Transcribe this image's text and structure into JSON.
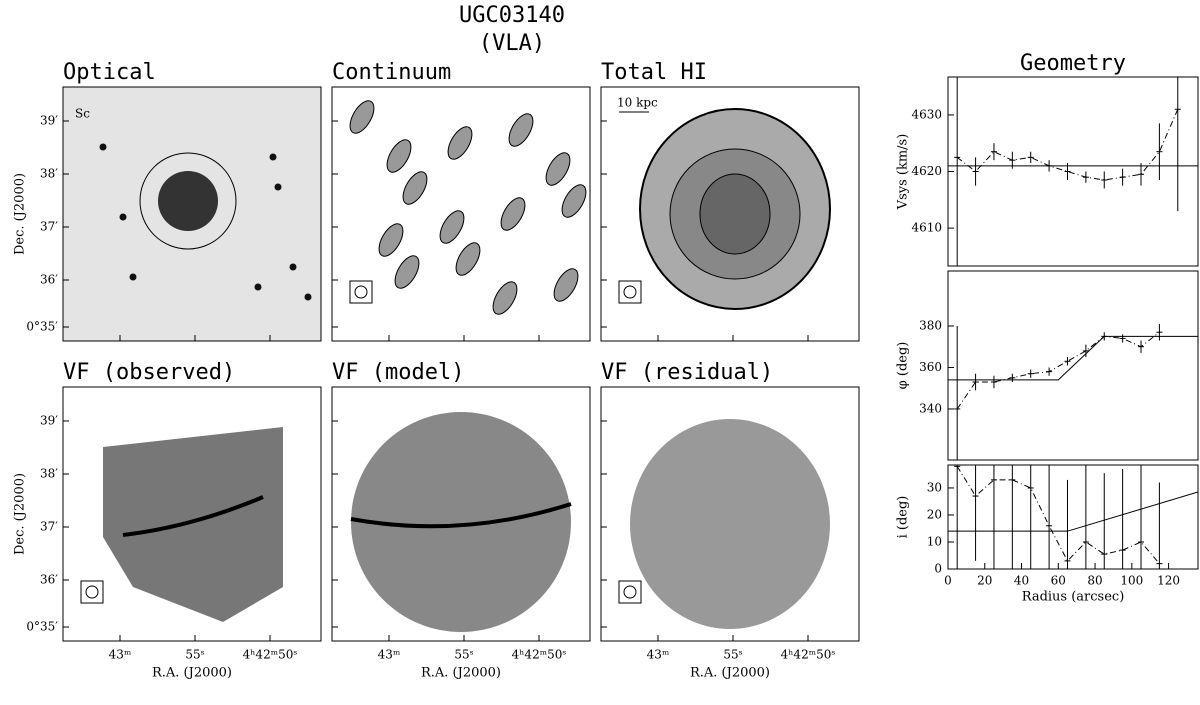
{
  "title": "UGC03140",
  "subtitle": "(VLA)",
  "panels": [
    {
      "title": "Optical",
      "annotation": "Sc"
    },
    {
      "title": "Continuum"
    },
    {
      "title": "Total HI",
      "annotation": "10 kpc"
    },
    {
      "title": "VF (observed)"
    },
    {
      "title": "VF (model)"
    },
    {
      "title": "VF (residual)"
    }
  ],
  "image_axes": {
    "ylabel": "Dec. (J2000)",
    "xlabel": "R.A. (J2000)",
    "yticks": [
      "39′",
      "38′",
      "37′",
      "36′",
      "0°35′"
    ],
    "xticks": [
      "43ᵐ",
      "55ˢ",
      "4ʰ42ᵐ50ˢ"
    ]
  },
  "geometry_title": "Geometry",
  "chart_data": [
    {
      "type": "errorbar",
      "ylabel": "Vsys (km/s)",
      "xlim": [
        0,
        136
      ],
      "ylim": [
        4603.3,
        4636.7
      ],
      "yticks": [
        4610,
        4620,
        4630
      ],
      "x": [
        5,
        15,
        25,
        35,
        45,
        55,
        65,
        75,
        85,
        95,
        105,
        115,
        125
      ],
      "values": [
        4622.5,
        4620,
        4623.5,
        4622,
        4622.5,
        4621,
        4620,
        4619,
        4618.5,
        4619,
        4619.5,
        4623.5,
        4631
      ],
      "errors": [
        40,
        2.5,
        1.5,
        1.5,
        1,
        1,
        1.5,
        1,
        1.5,
        1.5,
        2,
        5,
        18
      ],
      "fit": {
        "x": [
          0,
          136
        ],
        "values": [
          4621,
          4621
        ]
      }
    },
    {
      "type": "errorbar",
      "ylabel": "φ (deg)",
      "xlim": [
        0,
        136
      ],
      "ylim": [
        315.4,
        406.5
      ],
      "yticks": [
        340,
        360,
        380
      ],
      "x": [
        5,
        15,
        25,
        35,
        45,
        55,
        65,
        75,
        85,
        95,
        105,
        115
      ],
      "values": [
        340,
        353,
        353,
        355,
        357,
        358,
        363,
        368,
        375,
        374,
        370,
        377
      ],
      "errors": [
        40,
        4,
        3,
        2,
        2,
        2,
        2,
        3,
        2,
        2,
        3,
        4
      ],
      "fit": {
        "x": [
          0,
          60,
          85,
          136
        ],
        "values": [
          354,
          354,
          375,
          375
        ]
      }
    },
    {
      "type": "errorbar",
      "ylabel": "i (deg)",
      "xlabel": "Radius (arcsec)",
      "xlim": [
        0,
        136
      ],
      "ylim": [
        0,
        38.5
      ],
      "xticks": [
        0,
        20,
        40,
        60,
        80,
        100,
        120
      ],
      "yticks": [
        0,
        10,
        20,
        30
      ],
      "x": [
        5,
        15,
        25,
        35,
        45,
        55,
        65,
        75,
        85,
        95,
        105,
        115
      ],
      "values": [
        38,
        27,
        33,
        33,
        30,
        16,
        3,
        10,
        5.5,
        7,
        10,
        2
      ],
      "errors": [
        40,
        24,
        40,
        40,
        30,
        30,
        30,
        30,
        30,
        30,
        30,
        30
      ],
      "fit": {
        "x": [
          0,
          65,
          136
        ],
        "values": [
          14,
          14,
          28.5
        ]
      }
    }
  ]
}
